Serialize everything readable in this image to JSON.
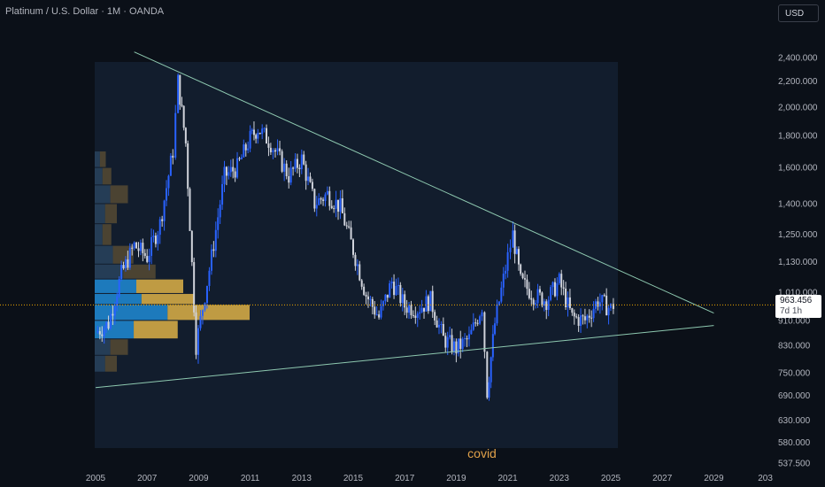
{
  "header": {
    "title": "Platinum / U.S. Dollar · 1M · OANDA"
  },
  "currency_button": "USD",
  "price_tag": {
    "value": "963.456",
    "countdown": "7d 1h"
  },
  "colors": {
    "background": "#0b1018",
    "panel": "#121d2d",
    "up": "#2962ff",
    "down": "#d1d4dc",
    "trend": "#8ec9b0",
    "price_line": "#f0a800",
    "vp_blue": "#1f7fc4",
    "vp_gold": "#c9a244"
  },
  "chart_data": {
    "type": "candlestick",
    "title": "Platinum / U.S. Dollar · 1M · OANDA",
    "xlabel": "",
    "ylabel": "",
    "y_scale": "log",
    "ylim": [
      537.5,
      2500
    ],
    "xlim": [
      2005,
      2030.5
    ],
    "x_ticks": [
      "2005",
      "2007",
      "2009",
      "2011",
      "2013",
      "2015",
      "2017",
      "2019",
      "2021",
      "2023",
      "2025",
      "2027",
      "2029",
      "203"
    ],
    "y_ticks": [
      "2,400.000",
      "2,200.000",
      "2,000.000",
      "1,800.000",
      "1,600.000",
      "1,400.000",
      "1,250.000",
      "1,130.000",
      "1,010.000",
      "910.000",
      "830.000",
      "750.000",
      "690.000",
      "630.000",
      "580.000",
      "537.500"
    ],
    "grid": false,
    "last_price": 963.456,
    "series": [
      {
        "type": "candlestick",
        "x": [
          2005.0,
          2005.5,
          2006.0,
          2006.5,
          2007.0,
          2007.5,
          2008.0,
          2008.2,
          2008.5,
          2008.9,
          2009.5,
          2010.0,
          2010.5,
          2011.0,
          2011.3,
          2011.8,
          2012.5,
          2013.0,
          2013.5,
          2014.0,
          2014.5,
          2015.0,
          2015.5,
          2016.0,
          2016.5,
          2017.0,
          2017.5,
          2018.0,
          2018.5,
          2019.0,
          2019.5,
          2020.0,
          2020.2,
          2020.5,
          2021.0,
          2021.2,
          2021.5,
          2022.0,
          2022.5,
          2023.0,
          2023.5,
          2024.0,
          2024.5,
          2025.0,
          2025.1
        ],
        "values": [
          870,
          900,
          1080,
          1200,
          1150,
          1300,
          1700,
          2200,
          1750,
          830,
          1150,
          1550,
          1600,
          1780,
          1850,
          1750,
          1550,
          1650,
          1400,
          1450,
          1380,
          1180,
          1000,
          920,
          1050,
          960,
          950,
          980,
          850,
          820,
          850,
          960,
          700,
          900,
          1150,
          1250,
          1050,
          1000,
          980,
          1050,
          920,
          910,
          980,
          950,
          963.456
        ]
      },
      {
        "type": "trendline",
        "name": "",
        "x": [
          2006.5,
          2029
        ],
        "values": [
          2450,
          935
        ]
      },
      {
        "type": "trendline",
        "name": "",
        "x": [
          2005,
          2029
        ],
        "values": [
          710,
          893
        ]
      },
      {
        "type": "volume_profile",
        "name": "",
        "price_bins": [
          1700,
          1600,
          1500,
          1400,
          1300,
          1200,
          1120,
          1060,
          1005,
          965,
          910,
          850,
          800
        ],
        "volume": [
          2,
          3,
          6,
          4,
          3,
          7,
          11,
          16,
          18,
          28,
          15,
          6,
          4
        ],
        "highlight": [
          1030,
          970
        ]
      }
    ],
    "annotations": [
      {
        "text": "covid",
        "x": 2020.0,
        "y": 545
      }
    ]
  }
}
